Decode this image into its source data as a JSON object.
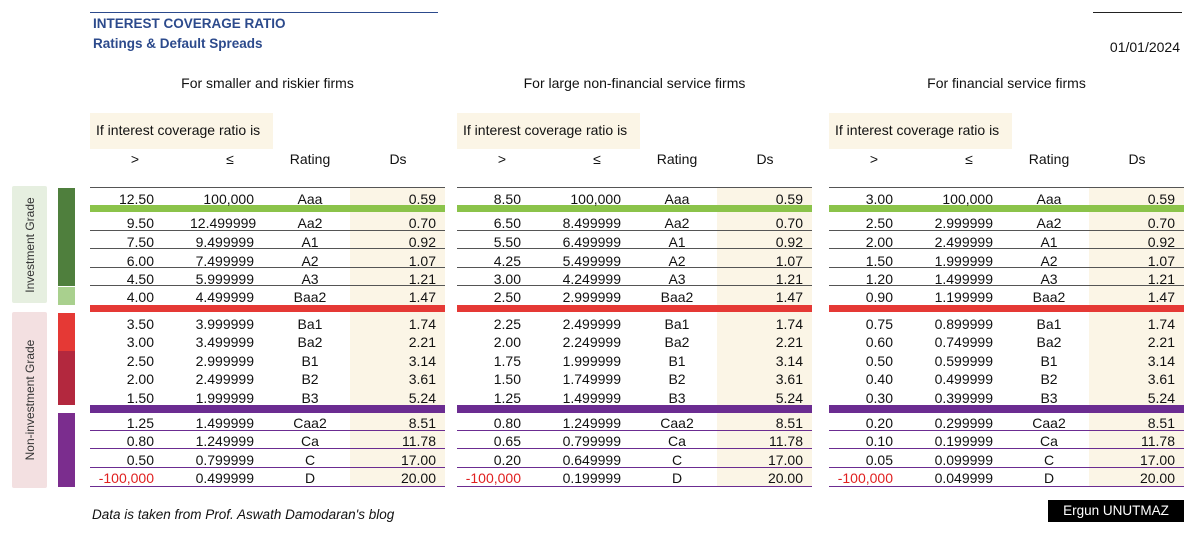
{
  "header": {
    "title": "INTEREST COVERAGE RATIO",
    "subtitle": "Ratings & Default Spreads",
    "date": "01/01/2024"
  },
  "side": {
    "investment_label": "Investment Grade",
    "non_investment_label": "Non-investment Grade"
  },
  "colors": {
    "title": "#2c4a8c",
    "aaa_sep": "#8bc34a",
    "baa_sep": "#e53935",
    "b3_sep": "#6b2c91",
    "ig_dark": "#4f7f3d",
    "ig_light": "#a9d08e",
    "ba_red": "#e53935",
    "b_red": "#b3283e",
    "caa_purple": "#7b2d8e",
    "highlight": "#fbf5e6",
    "negative": "#e02020"
  },
  "condition_label": "If interest coverage ratio is",
  "columns": [
    ">",
    "≤",
    "Rating",
    "Ds"
  ],
  "tables": [
    {
      "title": "For smaller and riskier firms",
      "rows": [
        [
          "12.50",
          "100,000",
          "Aaa",
          "0.59"
        ],
        [
          "9.50",
          "12.499999",
          "Aa2",
          "0.70"
        ],
        [
          "7.50",
          "9.499999",
          "A1",
          "0.92"
        ],
        [
          "6.00",
          "7.499999",
          "A2",
          "1.07"
        ],
        [
          "4.50",
          "5.999999",
          "A3",
          "1.21"
        ],
        [
          "4.00",
          "4.499999",
          "Baa2",
          "1.47"
        ],
        [
          "3.50",
          "3.999999",
          "Ba1",
          "1.74"
        ],
        [
          "3.00",
          "3.499999",
          "Ba2",
          "2.21"
        ],
        [
          "2.50",
          "2.999999",
          "B1",
          "3.14"
        ],
        [
          "2.00",
          "2.499999",
          "B2",
          "3.61"
        ],
        [
          "1.50",
          "1.999999",
          "B3",
          "5.24"
        ],
        [
          "1.25",
          "1.499999",
          "Caa2",
          "8.51"
        ],
        [
          "0.80",
          "1.249999",
          "Ca",
          "11.78"
        ],
        [
          "0.50",
          "0.799999",
          "C",
          "17.00"
        ],
        [
          "-100,000",
          "0.499999",
          "D",
          "20.00"
        ]
      ]
    },
    {
      "title": "For large non-financial service firms",
      "rows": [
        [
          "8.50",
          "100,000",
          "Aaa",
          "0.59"
        ],
        [
          "6.50",
          "8.499999",
          "Aa2",
          "0.70"
        ],
        [
          "5.50",
          "6.499999",
          "A1",
          "0.92"
        ],
        [
          "4.25",
          "5.499999",
          "A2",
          "1.07"
        ],
        [
          "3.00",
          "4.249999",
          "A3",
          "1.21"
        ],
        [
          "2.50",
          "2.999999",
          "Baa2",
          "1.47"
        ],
        [
          "2.25",
          "2.499999",
          "Ba1",
          "1.74"
        ],
        [
          "2.00",
          "2.249999",
          "Ba2",
          "2.21"
        ],
        [
          "1.75",
          "1.999999",
          "B1",
          "3.14"
        ],
        [
          "1.50",
          "1.749999",
          "B2",
          "3.61"
        ],
        [
          "1.25",
          "1.499999",
          "B3",
          "5.24"
        ],
        [
          "0.80",
          "1.249999",
          "Caa2",
          "8.51"
        ],
        [
          "0.65",
          "0.799999",
          "Ca",
          "11.78"
        ],
        [
          "0.20",
          "0.649999",
          "C",
          "17.00"
        ],
        [
          "-100,000",
          "0.199999",
          "D",
          "20.00"
        ]
      ]
    },
    {
      "title": "For financial service firms",
      "rows": [
        [
          "3.00",
          "100,000",
          "Aaa",
          "0.59"
        ],
        [
          "2.50",
          "2.999999",
          "Aa2",
          "0.70"
        ],
        [
          "2.00",
          "2.499999",
          "A1",
          "0.92"
        ],
        [
          "1.50",
          "1.999999",
          "A2",
          "1.07"
        ],
        [
          "1.20",
          "1.499999",
          "A3",
          "1.21"
        ],
        [
          "0.90",
          "1.199999",
          "Baa2",
          "1.47"
        ],
        [
          "0.75",
          "0.899999",
          "Ba1",
          "1.74"
        ],
        [
          "0.60",
          "0.749999",
          "Ba2",
          "2.21"
        ],
        [
          "0.50",
          "0.599999",
          "B1",
          "3.14"
        ],
        [
          "0.40",
          "0.499999",
          "B2",
          "3.61"
        ],
        [
          "0.30",
          "0.399999",
          "B3",
          "5.24"
        ],
        [
          "0.20",
          "0.299999",
          "Caa2",
          "8.51"
        ],
        [
          "0.10",
          "0.199999",
          "Ca",
          "11.78"
        ],
        [
          "0.05",
          "0.099999",
          "C",
          "17.00"
        ],
        [
          "-100,000",
          "0.049999",
          "D",
          "20.00"
        ]
      ]
    }
  ],
  "footer": {
    "source": "Data is taken from Prof. Aswath Damodaran's blog",
    "author": "Ergun UNUTMAZ"
  }
}
